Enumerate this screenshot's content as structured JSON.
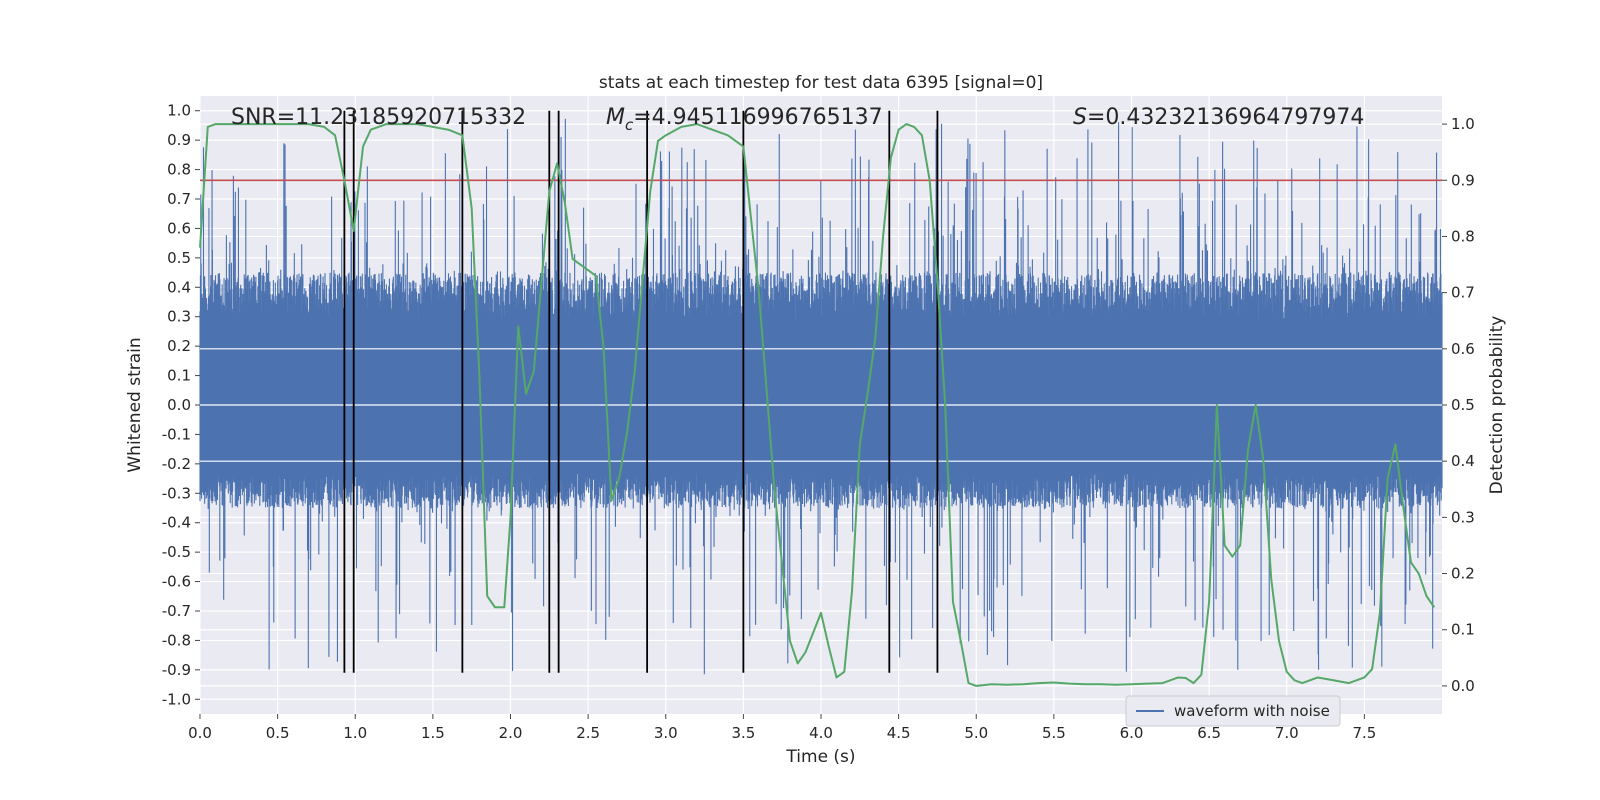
{
  "chart_data": {
    "type": "line",
    "title": "stats at each timestep for test data 6395 [signal=0]",
    "xlabel": "Time (s)",
    "ylabel_left": "Whitened strain",
    "ylabel_right": "Detection probability",
    "xlim": [
      0.0,
      8.0
    ],
    "ylim_left": [
      -1.05,
      1.05
    ],
    "ylim_right": [
      -0.05,
      1.05
    ],
    "x_ticks": [
      "0.0",
      "0.5",
      "1.0",
      "1.5",
      "2.0",
      "2.5",
      "3.0",
      "3.5",
      "4.0",
      "4.5",
      "5.0",
      "5.5",
      "6.0",
      "6.5",
      "7.0",
      "7.5"
    ],
    "y_left_ticks": [
      "-1.0",
      "-0.9",
      "-0.8",
      "-0.7",
      "-0.6",
      "-0.5",
      "-0.4",
      "-0.3",
      "-0.2",
      "-0.1",
      "0.0",
      "0.1",
      "0.2",
      "0.3",
      "0.4",
      "0.5",
      "0.6",
      "0.7",
      "0.8",
      "0.9",
      "1.0"
    ],
    "y_right_ticks": [
      "0.0",
      "0.1",
      "0.2",
      "0.3",
      "0.4",
      "0.5",
      "0.6",
      "0.7",
      "0.8",
      "0.9",
      "1.0"
    ],
    "grid": true,
    "legend": {
      "position": "lower-right",
      "entries": [
        "waveform with noise"
      ]
    },
    "annotations": {
      "snr": "SNR=11.23185920715332",
      "mc_symbol": "M",
      "mc_sub": "c",
      "mc_value": "=4.945116996765137",
      "s_symbol": "S",
      "s_value": "=0.43232136964797974"
    },
    "threshold_right": 0.9,
    "vertical_lines_x": [
      0.93,
      0.99,
      1.69,
      2.25,
      2.31,
      2.88,
      3.5,
      4.44,
      4.75
    ],
    "vertical_lines_ylim_left": [
      -0.91,
      1.0
    ],
    "waveform": {
      "name": "waveform with noise",
      "x_range": [
        0.0,
        8.0
      ],
      "core_envelope": [
        -0.35,
        0.45
      ],
      "max_abs": 1.0,
      "color": "#4c72b0"
    },
    "detection_probability": {
      "color": "#55a868",
      "x": [
        0.0,
        0.05,
        0.1,
        0.2,
        0.3,
        0.4,
        0.5,
        0.6,
        0.7,
        0.8,
        0.87,
        0.93,
        0.99,
        1.05,
        1.1,
        1.2,
        1.3,
        1.4,
        1.5,
        1.6,
        1.69,
        1.75,
        1.8,
        1.85,
        1.9,
        1.96,
        2.0,
        2.05,
        2.1,
        2.15,
        2.2,
        2.25,
        2.3,
        2.35,
        2.4,
        2.45,
        2.5,
        2.55,
        2.6,
        2.65,
        2.7,
        2.75,
        2.8,
        2.85,
        2.9,
        2.95,
        3.0,
        3.1,
        3.2,
        3.3,
        3.4,
        3.5,
        3.55,
        3.6,
        3.7,
        3.8,
        3.85,
        3.9,
        4.0,
        4.05,
        4.1,
        4.15,
        4.2,
        4.25,
        4.3,
        4.35,
        4.4,
        4.45,
        4.5,
        4.55,
        4.6,
        4.65,
        4.7,
        4.75,
        4.8,
        4.85,
        4.9,
        4.95,
        5.0,
        5.1,
        5.2,
        5.3,
        5.4,
        5.5,
        5.6,
        5.7,
        5.8,
        5.9,
        6.0,
        6.1,
        6.2,
        6.25,
        6.3,
        6.35,
        6.4,
        6.45,
        6.5,
        6.55,
        6.6,
        6.65,
        6.7,
        6.75,
        6.8,
        6.85,
        6.9,
        6.95,
        7.0,
        7.05,
        7.1,
        7.2,
        7.3,
        7.4,
        7.5,
        7.55,
        7.6,
        7.65,
        7.7,
        7.75,
        7.8,
        7.85,
        7.9,
        7.95
      ],
      "y": [
        0.78,
        0.995,
        1.0,
        1.0,
        1.0,
        1.0,
        1.0,
        1.0,
        1.0,
        0.995,
        0.98,
        0.9,
        0.81,
        0.96,
        0.99,
        1.0,
        1.0,
        1.0,
        0.995,
        0.99,
        0.98,
        0.85,
        0.55,
        0.16,
        0.14,
        0.14,
        0.3,
        0.64,
        0.52,
        0.56,
        0.72,
        0.88,
        0.93,
        0.86,
        0.76,
        0.75,
        0.74,
        0.73,
        0.6,
        0.33,
        0.37,
        0.45,
        0.56,
        0.72,
        0.88,
        0.97,
        0.98,
        0.995,
        1.0,
        0.99,
        0.98,
        0.96,
        0.83,
        0.7,
        0.35,
        0.08,
        0.04,
        0.06,
        0.13,
        0.07,
        0.015,
        0.025,
        0.17,
        0.43,
        0.52,
        0.62,
        0.8,
        0.94,
        0.99,
        1.0,
        0.995,
        0.98,
        0.9,
        0.72,
        0.5,
        0.15,
        0.08,
        0.005,
        0.0,
        0.003,
        0.002,
        0.003,
        0.005,
        0.006,
        0.004,
        0.003,
        0.003,
        0.002,
        0.003,
        0.004,
        0.005,
        0.01,
        0.015,
        0.014,
        0.005,
        0.02,
        0.15,
        0.5,
        0.25,
        0.23,
        0.25,
        0.42,
        0.5,
        0.4,
        0.19,
        0.08,
        0.025,
        0.01,
        0.005,
        0.015,
        0.01,
        0.005,
        0.015,
        0.03,
        0.13,
        0.37,
        0.43,
        0.32,
        0.22,
        0.2,
        0.16,
        0.14
      ]
    }
  }
}
